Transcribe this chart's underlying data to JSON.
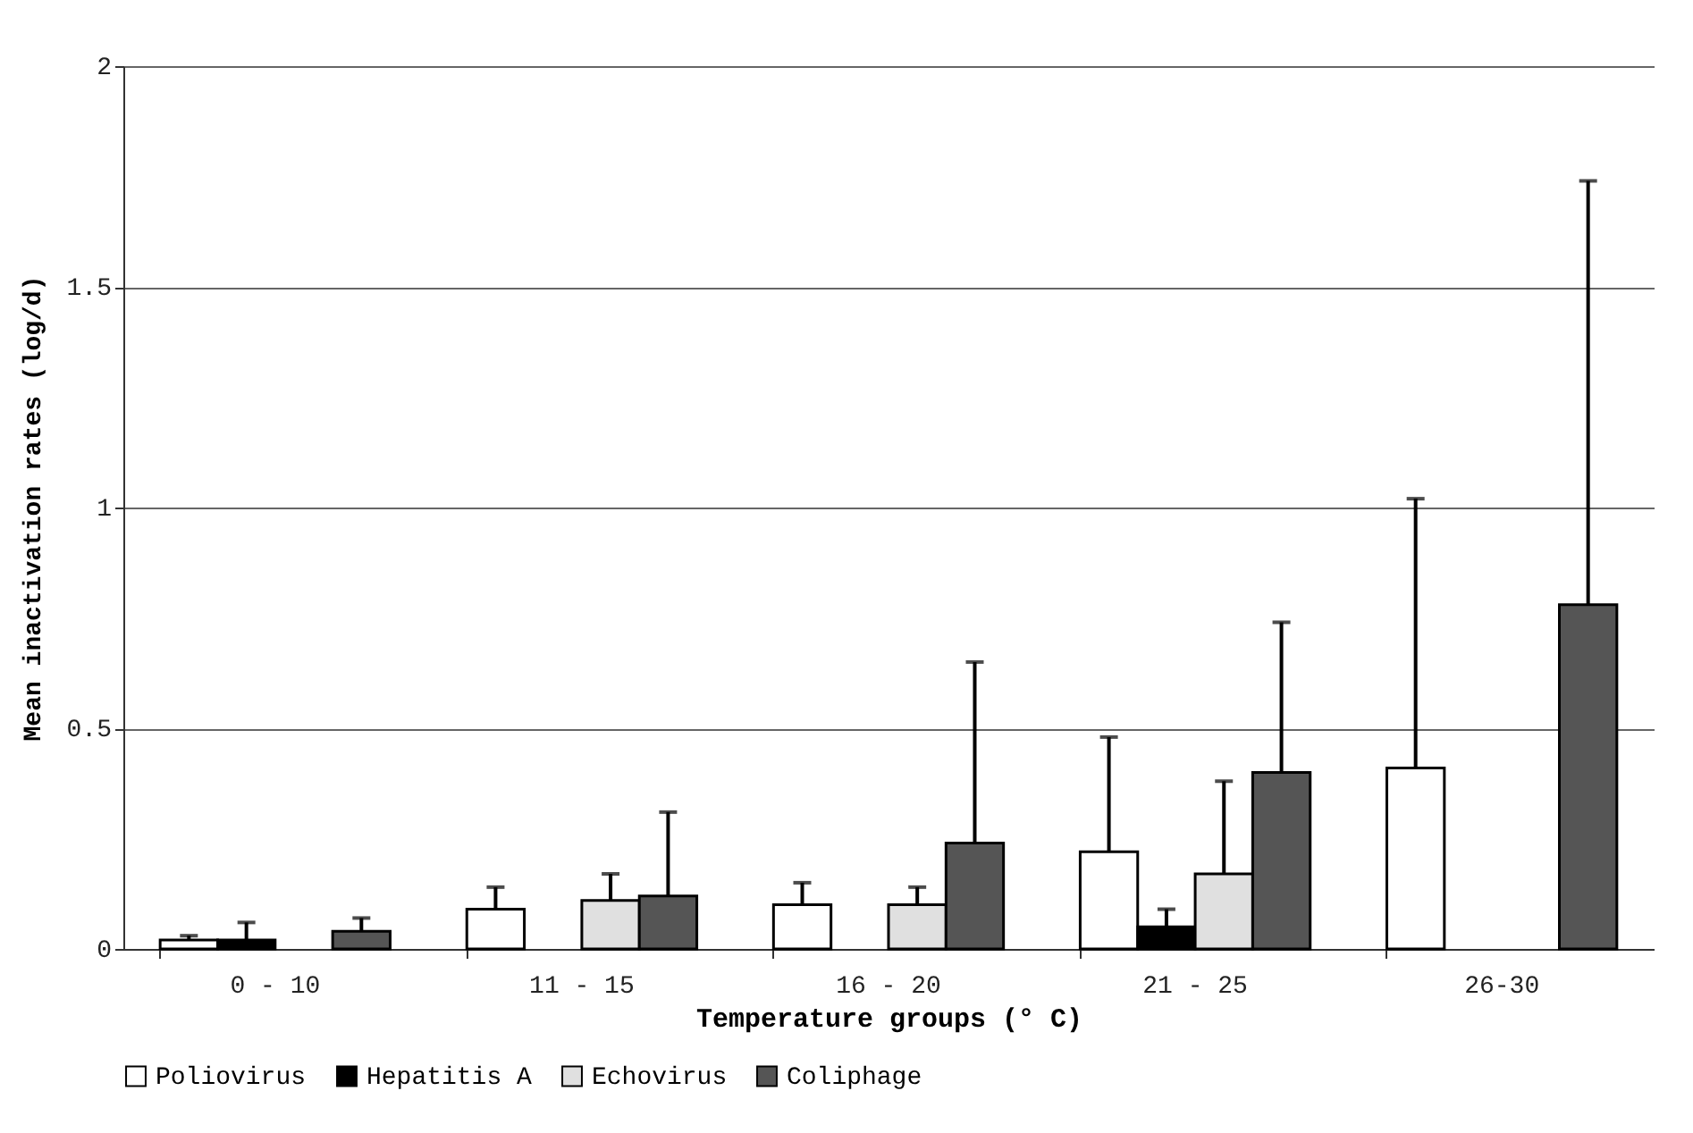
{
  "chart_data": {
    "type": "bar",
    "xlabel": "Temperature groups (° C)",
    "ylabel": "Mean inactivation rates (log/d)",
    "categories": [
      "0 - 10",
      "11 - 15",
      "16 - 20",
      "21 - 25",
      "26-30"
    ],
    "series": [
      {
        "name": "Poliovirus",
        "color": "#ffffff",
        "values": [
          0.02,
          0.09,
          0.1,
          0.22,
          0.41
        ],
        "errors": [
          [
            0.02,
            0.03
          ],
          [
            0.09,
            0.14
          ],
          [
            0.1,
            0.15
          ],
          [
            0.22,
            0.48
          ],
          [
            0.41,
            1.02
          ]
        ]
      },
      {
        "name": "Hepatitis A",
        "color": "#000000",
        "values": [
          0.02,
          null,
          null,
          0.05,
          null
        ],
        "errors": [
          [
            0.02,
            0.06
          ],
          null,
          null,
          [
            0.05,
            0.09
          ],
          null
        ]
      },
      {
        "name": "Echovirus",
        "color": "#e0e0e0",
        "values": [
          null,
          0.11,
          0.1,
          0.17,
          null
        ],
        "errors": [
          null,
          [
            0.11,
            0.17
          ],
          [
            0.1,
            0.14
          ],
          [
            0.17,
            0.38
          ],
          null
        ]
      },
      {
        "name": "Coliphage",
        "color": "#555555",
        "values": [
          0.04,
          0.12,
          0.24,
          0.4,
          0.78
        ],
        "errors": [
          [
            0.04,
            0.07
          ],
          [
            0.12,
            0.31
          ],
          [
            0.24,
            0.65
          ],
          [
            0.4,
            0.74
          ],
          [
            0.78,
            1.74
          ]
        ]
      }
    ],
    "ylim": [
      0,
      2
    ],
    "yticks": [
      0,
      0.5,
      1,
      1.5,
      2
    ],
    "grid": "y",
    "legend": "bottom"
  }
}
